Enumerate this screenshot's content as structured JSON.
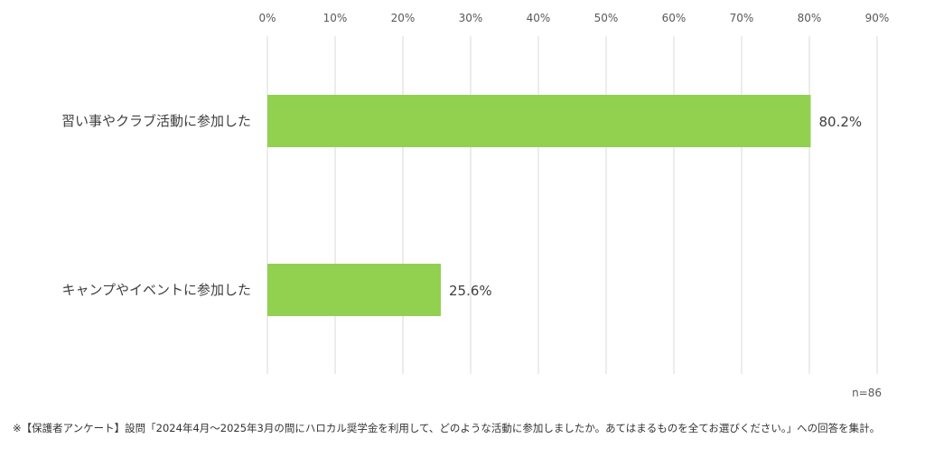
{
  "chart_data": {
    "type": "bar",
    "orientation": "horizontal",
    "categories": [
      "習い事やクラブ活動に参加した",
      "キャンプやイベントに参加した"
    ],
    "values": [
      80.2,
      25.6
    ],
    "data_labels": [
      "80.2%",
      "25.6%"
    ],
    "x_ticks": [
      "0%",
      "10%",
      "20%",
      "30%",
      "40%",
      "50%",
      "60%",
      "70%",
      "80%",
      "90%"
    ],
    "xlim": [
      0,
      90
    ],
    "axis_position": "top",
    "grid": true,
    "bar_color": "#92d050",
    "grid_color": "#d9d9d9"
  },
  "sample_size": "n=86",
  "footnote": "※【保護者アンケート】設問「2024年4月～2025年3月の間にハロカル奨学金を利用して、どのような活動に参加しましたか。あてはまるものを全てお選びください。」への回答を集計。"
}
